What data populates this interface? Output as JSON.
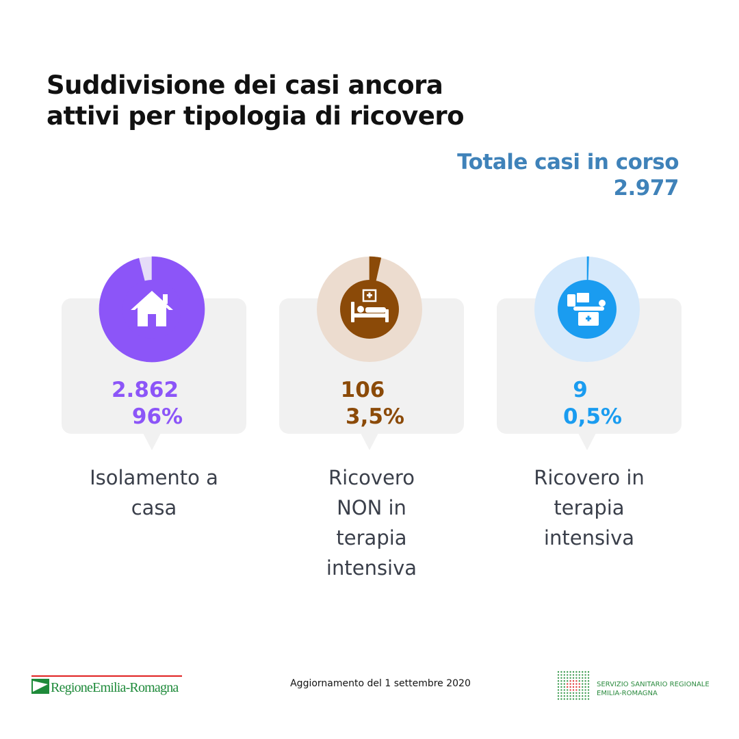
{
  "title": "Suddivisione dei casi ancora attivi per tipologia di ricovero",
  "total_title": "Totale casi in corso",
  "total": {
    "value": 2977,
    "label": "2.977"
  },
  "chart_data": [
    {
      "type": "donut",
      "label": "Isolamento a casa",
      "count": {
        "value": 2862,
        "label": "2.862"
      },
      "values": [
        96
      ],
      "value_labels": [
        "96%"
      ],
      "color": "#8c55f8",
      "track_color": "#e6ddf8"
    },
    {
      "type": "donut",
      "label": "Ricovero NON in terapia intensiva",
      "count": 106,
      "values": [
        3.5
      ],
      "value_labels": [
        "3,5%"
      ],
      "color": "#8b4a08",
      "track_color": "#ecdccf"
    },
    {
      "type": "donut",
      "label": "Ricovero in terapia intensiva",
      "count": 9,
      "values": [
        0.5
      ],
      "value_labels": [
        "0,5%"
      ],
      "color": "#1a9cf0",
      "track_color": "#d6e9fb"
    }
  ],
  "footer": {
    "left_logo": "RegioneEmilia-Romagna",
    "date": "Aggiornamento del 1 settembre 2020",
    "right_logo": [
      "SERVIZIO SANITARIO REGIONALE",
      "EMILIA-ROMAGNA"
    ]
  }
}
